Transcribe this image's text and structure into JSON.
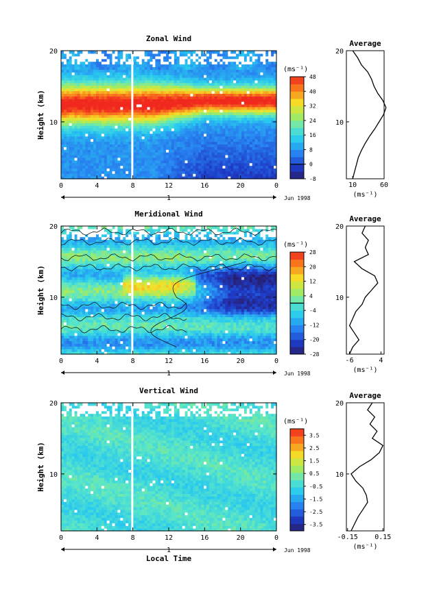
{
  "chart_data": [
    {
      "type": "heatmap",
      "title": "Zonal Wind",
      "xlabel": "",
      "ylabel": "Height (km)",
      "x_ticks": [
        "0",
        "4",
        "8",
        "12",
        "16",
        "20",
        "0"
      ],
      "y_ticks": [
        "20",
        "10"
      ],
      "xlim": [
        0,
        24
      ],
      "ylim": [
        2,
        20
      ],
      "day_label": "1",
      "date_label": "Jun 1998",
      "colorbar": {
        "unit": "(ms⁻¹)",
        "min": -8,
        "max": 48,
        "ticks": [
          "48",
          "40",
          "32",
          "24",
          "16",
          "8",
          "0",
          "-8"
        ],
        "ticks_values": [
          48,
          40,
          32,
          24,
          16,
          8,
          0,
          -8
        ]
      },
      "average": {
        "title": "Average",
        "xlabel": "(ms⁻¹)",
        "x_ticks": [
          "10",
          "60"
        ],
        "xlim": [
          0,
          60
        ],
        "y_ticks": [
          "20",
          "10"
        ],
        "profile": [
          [
            2,
            10
          ],
          [
            3,
            13
          ],
          [
            4,
            16
          ],
          [
            5,
            19
          ],
          [
            6,
            24
          ],
          [
            7,
            30
          ],
          [
            8,
            37
          ],
          [
            9,
            45
          ],
          [
            10,
            52
          ],
          [
            11,
            59
          ],
          [
            12,
            63
          ],
          [
            13,
            58
          ],
          [
            14,
            50
          ],
          [
            15,
            44
          ],
          [
            16,
            40
          ],
          [
            17,
            34
          ],
          [
            18,
            24
          ],
          [
            19,
            18
          ],
          [
            20,
            10
          ]
        ]
      }
    },
    {
      "type": "heatmap",
      "title": "Meridional Wind",
      "xlabel": "",
      "ylabel": "Height (km)",
      "x_ticks": [
        "0",
        "4",
        "8",
        "12",
        "16",
        "20",
        "0"
      ],
      "y_ticks": [
        "20",
        "10"
      ],
      "xlim": [
        0,
        24
      ],
      "ylim": [
        2,
        20
      ],
      "day_label": "1",
      "date_label": "Jun 1998",
      "colorbar": {
        "unit": "(ms⁻¹)",
        "min": -28,
        "max": 28,
        "ticks": [
          "28",
          "20",
          "12",
          "4",
          "-4",
          "-12",
          "-20",
          "-28"
        ],
        "ticks_values": [
          28,
          20,
          12,
          4,
          -4,
          -12,
          -20,
          -28
        ]
      },
      "average": {
        "title": "Average",
        "xlabel": "(ms⁻¹)",
        "x_ticks": [
          "-6",
          "4"
        ],
        "xlim": [
          -7,
          5
        ],
        "y_ticks": [
          "20",
          "10"
        ],
        "profile": [
          [
            2,
            -6
          ],
          [
            3,
            -5
          ],
          [
            4,
            -3
          ],
          [
            5,
            -4.5
          ],
          [
            6,
            -6
          ],
          [
            7,
            -5
          ],
          [
            8,
            -4
          ],
          [
            9,
            -2
          ],
          [
            10,
            -1
          ],
          [
            11,
            1
          ],
          [
            12,
            3
          ],
          [
            13,
            2
          ],
          [
            14,
            -2
          ],
          [
            15,
            -4.5
          ],
          [
            16,
            0
          ],
          [
            17,
            -1
          ],
          [
            18,
            0
          ],
          [
            19,
            -2
          ],
          [
            20,
            -1
          ]
        ]
      }
    },
    {
      "type": "heatmap",
      "title": "Vertical Wind",
      "xlabel": "Local Time",
      "ylabel": "Height (km)",
      "x_ticks": [
        "0",
        "4",
        "8",
        "12",
        "16",
        "20",
        "0"
      ],
      "y_ticks": [
        "20",
        "10"
      ],
      "xlim": [
        0,
        24
      ],
      "ylim": [
        2,
        20
      ],
      "day_label": "1",
      "date_label": "Jun 1998",
      "colorbar": {
        "unit": "(ms⁻¹)",
        "min": -4,
        "max": 4,
        "ticks": [
          "3.5",
          "2.5",
          "1.5",
          "0.5",
          "-0.5",
          "-1.5",
          "-2.5",
          "-3.5"
        ],
        "ticks_values": [
          3.5,
          2.5,
          1.5,
          0.5,
          -0.5,
          -1.5,
          -2.5,
          -3.5
        ]
      },
      "average": {
        "title": "Average",
        "xlabel": "(ms⁻¹)",
        "x_ticks": [
          "-0.15",
          "0.15"
        ],
        "xlim": [
          -0.16,
          0.16
        ],
        "y_ticks": [
          "20",
          "10"
        ],
        "profile": [
          [
            2,
            -0.12
          ],
          [
            3,
            -0.09
          ],
          [
            4,
            -0.06
          ],
          [
            5,
            -0.02
          ],
          [
            6,
            0.02
          ],
          [
            7,
            0.01
          ],
          [
            8,
            -0.02
          ],
          [
            9,
            -0.08
          ],
          [
            10,
            -0.12
          ],
          [
            11,
            -0.05
          ],
          [
            12,
            0.05
          ],
          [
            13,
            0.12
          ],
          [
            14,
            0.15
          ],
          [
            15,
            0.06
          ],
          [
            16,
            0.1
          ],
          [
            17,
            0.04
          ],
          [
            18,
            0.08
          ],
          [
            19,
            0.02
          ],
          [
            20,
            0.06
          ]
        ]
      }
    }
  ]
}
